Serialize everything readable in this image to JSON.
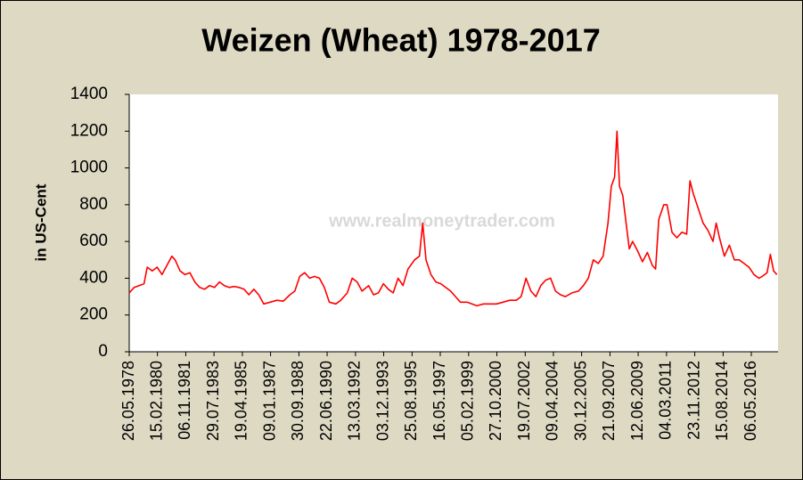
{
  "chart_data": {
    "type": "line",
    "title": "Weizen (Wheat) 1978-2017",
    "ylabel": "in US-Cent",
    "watermark": "www.realmoneytrader.com",
    "x": [
      1978.4,
      1978.7,
      1979.0,
      1979.3,
      1979.5,
      1979.8,
      1980.1,
      1980.4,
      1980.7,
      1981.0,
      1981.2,
      1981.5,
      1981.8,
      1982.1,
      1982.4,
      1982.7,
      1983.0,
      1983.3,
      1983.6,
      1983.9,
      1984.2,
      1984.5,
      1984.8,
      1985.1,
      1985.4,
      1985.7,
      1986.0,
      1986.3,
      1986.6,
      1987.0,
      1987.4,
      1987.8,
      1988.2,
      1988.5,
      1988.8,
      1989.1,
      1989.4,
      1989.7,
      1990.0,
      1990.3,
      1990.6,
      1991.0,
      1991.3,
      1991.7,
      1992.0,
      1992.3,
      1992.6,
      1993.0,
      1993.3,
      1993.6,
      1993.9,
      1994.2,
      1994.5,
      1994.8,
      1995.1,
      1995.4,
      1995.8,
      1996.1,
      1996.3,
      1996.5,
      1996.8,
      1997.1,
      1997.4,
      1997.7,
      1998.0,
      1998.3,
      1998.6,
      1999.0,
      1999.3,
      1999.6,
      2000.0,
      2000.4,
      2000.8,
      2001.2,
      2001.6,
      2002.0,
      2002.3,
      2002.6,
      2002.9,
      2003.2,
      2003.5,
      2003.8,
      2004.1,
      2004.4,
      2004.7,
      2005.0,
      2005.4,
      2005.8,
      2006.1,
      2006.4,
      2006.7,
      2007.0,
      2007.3,
      2007.6,
      2007.8,
      2008.0,
      2008.15,
      2008.3,
      2008.5,
      2008.7,
      2008.9,
      2009.1,
      2009.4,
      2009.7,
      2010.0,
      2010.3,
      2010.5,
      2010.7,
      2011.0,
      2011.2,
      2011.5,
      2011.8,
      2012.1,
      2012.4,
      2012.6,
      2012.8,
      2013.1,
      2013.4,
      2013.7,
      2014.0,
      2014.2,
      2014.4,
      2014.7,
      2015.0,
      2015.3,
      2015.6,
      2015.9,
      2016.2,
      2016.5,
      2016.8,
      2017.0,
      2017.3,
      2017.5,
      2017.7,
      2017.9
    ],
    "series": [
      {
        "name": "Weizen",
        "color": "#ff0000",
        "values": [
          320,
          350,
          360,
          370,
          460,
          440,
          460,
          420,
          470,
          520,
          500,
          440,
          420,
          430,
          380,
          350,
          340,
          360,
          350,
          380,
          360,
          350,
          355,
          350,
          340,
          310,
          340,
          310,
          260,
          270,
          280,
          275,
          310,
          330,
          410,
          430,
          400,
          410,
          400,
          350,
          270,
          260,
          280,
          320,
          400,
          380,
          330,
          360,
          310,
          320,
          370,
          340,
          320,
          400,
          360,
          450,
          500,
          520,
          700,
          500,
          420,
          380,
          370,
          350,
          330,
          300,
          270,
          270,
          260,
          250,
          260,
          260,
          260,
          270,
          280,
          280,
          300,
          400,
          330,
          300,
          360,
          390,
          400,
          330,
          310,
          300,
          320,
          330,
          360,
          400,
          500,
          480,
          520,
          700,
          900,
          950,
          1200,
          900,
          850,
          700,
          560,
          600,
          550,
          490,
          540,
          470,
          450,
          720,
          800,
          800,
          650,
          620,
          650,
          640,
          930,
          860,
          780,
          700,
          660,
          600,
          700,
          620,
          520,
          580,
          500,
          500,
          480,
          460,
          420,
          400,
          410,
          430,
          530,
          440,
          420
        ]
      }
    ],
    "xlim": [
      1978.4,
      2017.97
    ],
    "xticks": [
      {
        "value": 1978.4,
        "label": "26.05.1978"
      },
      {
        "value": 1980.12,
        "label": "15.02.1980"
      },
      {
        "value": 1981.85,
        "label": "06.11.1981"
      },
      {
        "value": 1983.57,
        "label": "29.07.1983"
      },
      {
        "value": 1985.3,
        "label": "19.04.1985"
      },
      {
        "value": 1987.02,
        "label": "09.01.1987"
      },
      {
        "value": 1988.75,
        "label": "30.09.1988"
      },
      {
        "value": 1990.47,
        "label": "22.06.1990"
      },
      {
        "value": 1992.2,
        "label": "13.03.1992"
      },
      {
        "value": 1993.92,
        "label": "03.12.1993"
      },
      {
        "value": 1995.65,
        "label": "25.08.1995"
      },
      {
        "value": 1997.37,
        "label": "16.05.1997"
      },
      {
        "value": 1999.1,
        "label": "05.02.1999"
      },
      {
        "value": 2000.82,
        "label": "27.10.2000"
      },
      {
        "value": 2002.55,
        "label": "19.07.2002"
      },
      {
        "value": 2004.27,
        "label": "09.04.2004"
      },
      {
        "value": 2005.99,
        "label": "30.12.2005"
      },
      {
        "value": 2007.72,
        "label": "21.09.2007"
      },
      {
        "value": 2009.44,
        "label": "12.06.2009"
      },
      {
        "value": 2011.17,
        "label": "04.03.2011"
      },
      {
        "value": 2012.89,
        "label": "23.11.2012"
      },
      {
        "value": 2014.62,
        "label": "15.08.2014"
      },
      {
        "value": 2016.34,
        "label": "06.05.2016"
      }
    ],
    "ylim": [
      0,
      1400
    ],
    "yticks": [
      0,
      200,
      400,
      600,
      800,
      1000,
      1200,
      1400
    ],
    "grid": false
  }
}
